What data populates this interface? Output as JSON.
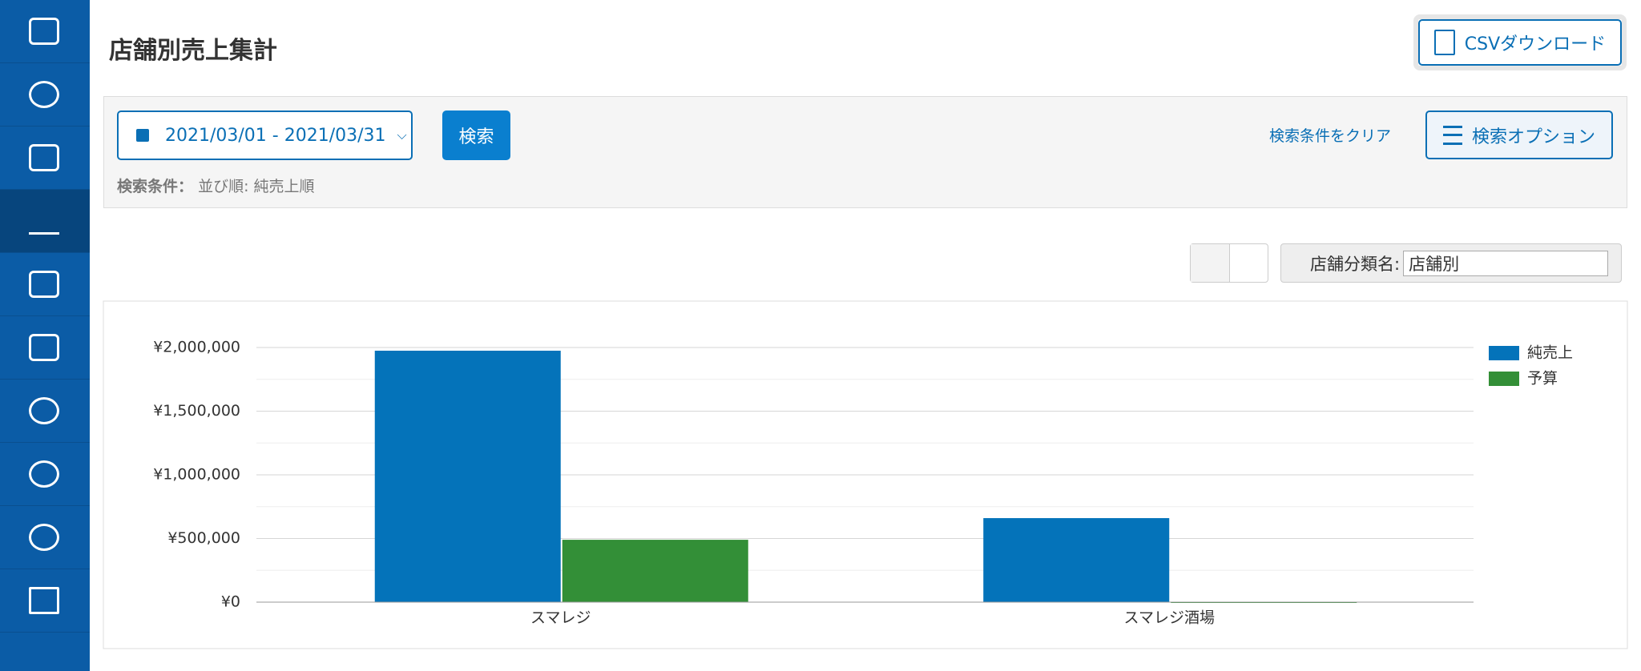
{
  "page": {
    "title": "店舗別売上集計",
    "csv_button": "CSVダウンロード",
    "date_range": "2021/03/01 - 2021/03/31",
    "search_button": "検索",
    "condition_label": "検索条件：",
    "condition_value": "並び順: 純売上順",
    "clear_link": "検索条件をクリア",
    "options_button": "検索オプション",
    "group_label": "店舗分類名:",
    "group_value": "店舗別"
  },
  "chart_data": {
    "type": "bar",
    "categories": [
      "スマレジ",
      "スマレジ酒場"
    ],
    "series": [
      {
        "name": "純売上",
        "color": "#0473ba",
        "values": [
          1975000,
          660000
        ]
      },
      {
        "name": "予算",
        "color": "#338f37",
        "values": [
          490000,
          0
        ]
      }
    ],
    "ylim": [
      0,
      2000000
    ],
    "yticks": [
      {
        "value": 0,
        "label": "¥0"
      },
      {
        "value": 500000,
        "label": "¥500,000"
      },
      {
        "value": 1000000,
        "label": "¥1,000,000"
      },
      {
        "value": 1500000,
        "label": "¥1,500,000"
      },
      {
        "value": 2000000,
        "label": "¥2,000,000"
      }
    ],
    "minor_yticks": [
      250000,
      750000,
      1250000,
      1750000
    ],
    "grid": true,
    "legend": "right"
  }
}
